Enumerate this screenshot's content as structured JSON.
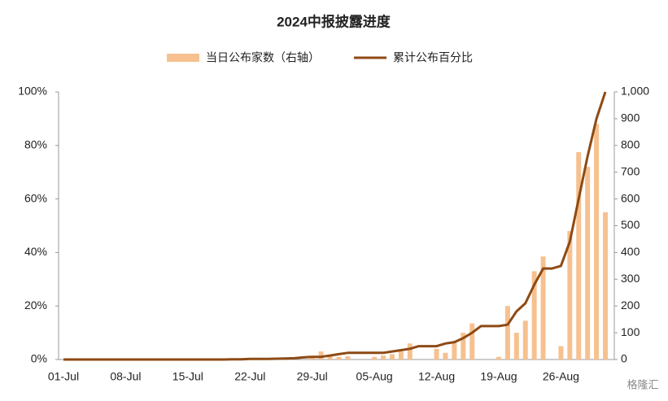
{
  "chart_data": {
    "type": "bar-line",
    "title": "2024中报披露进度",
    "watermark": "格隆汇",
    "categories": [
      "01-Jul",
      null,
      null,
      null,
      null,
      null,
      null,
      "08-Jul",
      null,
      null,
      null,
      null,
      null,
      null,
      "15-Jul",
      null,
      null,
      null,
      null,
      null,
      null,
      "22-Jul",
      null,
      null,
      null,
      null,
      null,
      null,
      "29-Jul",
      null,
      null,
      null,
      null,
      null,
      null,
      "05-Aug",
      null,
      null,
      null,
      null,
      null,
      null,
      "12-Aug",
      null,
      null,
      null,
      null,
      null,
      null,
      "19-Aug",
      null,
      null,
      null,
      null,
      null,
      null,
      "26-Aug",
      null,
      null,
      null,
      null,
      null
    ],
    "series": [
      {
        "name": "当日公布家数（右轴）",
        "color": "#f6c18f",
        "axis": "y2",
        "kind": "bar",
        "values": [
          0,
          0,
          0,
          0,
          0,
          0,
          0,
          0,
          0,
          0,
          0,
          0,
          0,
          0,
          0,
          0,
          0,
          0,
          0,
          0,
          0,
          0,
          0,
          0,
          0,
          0,
          0,
          0,
          10,
          30,
          15,
          10,
          12,
          0,
          0,
          10,
          15,
          20,
          30,
          60,
          0,
          0,
          40,
          25,
          65,
          100,
          135,
          0,
          0,
          10,
          200,
          100,
          145,
          330,
          385,
          0,
          50,
          480,
          775,
          720,
          880,
          550
        ]
      },
      {
        "name": "累计公布百分比",
        "color": "#8e4a14",
        "axis": "y",
        "kind": "line",
        "values": [
          0,
          0,
          0,
          0,
          0,
          0,
          0,
          0,
          0,
          0,
          0,
          0,
          0,
          0,
          0,
          0,
          0,
          0,
          0,
          0.1,
          0.1,
          0.2,
          0.2,
          0.2,
          0.3,
          0.4,
          0.5,
          0.8,
          1,
          1,
          1.5,
          2,
          2.5,
          2.5,
          2.5,
          2.5,
          2.5,
          3,
          3.5,
          4,
          5,
          5,
          5,
          6,
          6.5,
          8,
          10,
          12.5,
          12.5,
          12.5,
          13,
          18,
          21,
          28,
          34,
          34,
          35,
          44,
          60,
          76,
          90,
          100
        ]
      }
    ],
    "ylim": [
      0,
      100
    ],
    "yticks": [
      {
        "value": 0,
        "label": "0%"
      },
      {
        "value": 20,
        "label": "20%"
      },
      {
        "value": 40,
        "label": "40%"
      },
      {
        "value": 60,
        "label": "60%"
      },
      {
        "value": 80,
        "label": "80%"
      },
      {
        "value": 100,
        "label": "100%"
      }
    ],
    "y2lim": [
      0,
      1000
    ],
    "y2ticks": [
      0,
      100,
      200,
      300,
      400,
      500,
      600,
      700,
      800,
      900,
      {
        "value": 1000,
        "label": "1,000"
      }
    ],
    "grid": false
  }
}
